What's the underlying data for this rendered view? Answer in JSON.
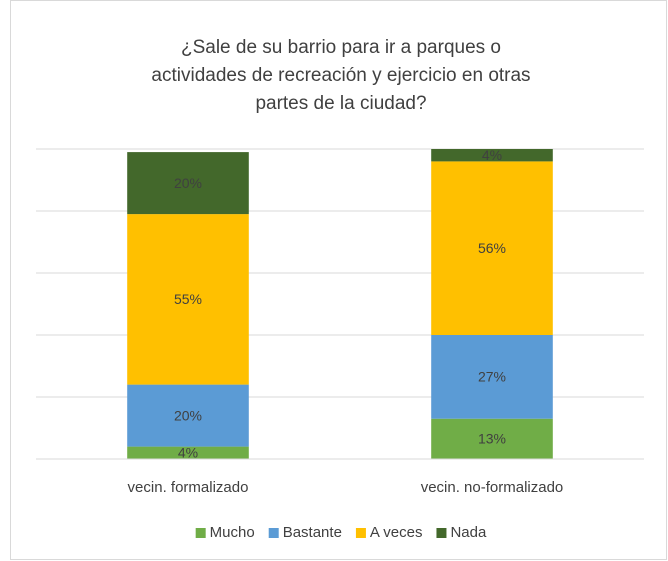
{
  "chart_data": {
    "type": "stacked_bar",
    "title": [
      "¿Sale de su barrio para ir a parques o",
      "actividades de recreación y ejercicio en otras",
      "partes de la ciudad?"
    ],
    "categories": [
      "vecin. formalizado",
      "vecin. no-formalizado"
    ],
    "series": [
      {
        "name": "Mucho",
        "color": "#70ad47",
        "values": [
          4,
          13
        ],
        "value_labels": [
          "4%",
          "13%"
        ]
      },
      {
        "name": "Bastante",
        "color": "#5b9bd5",
        "values": [
          20,
          27
        ],
        "value_labels": [
          "20%",
          "27%"
        ]
      },
      {
        "name": "A veces",
        "color": "#ffc000",
        "values": [
          55,
          56
        ],
        "value_labels": [
          "55%",
          "56%"
        ]
      },
      {
        "name": "Nada",
        "color": "#43682b",
        "values": [
          20,
          4
        ],
        "value_labels": [
          "20%",
          "4%"
        ]
      }
    ],
    "ylim": [
      0,
      100
    ],
    "yticks": [
      0,
      20,
      40,
      60,
      80,
      100
    ],
    "grid": true,
    "legend": "bottom"
  }
}
